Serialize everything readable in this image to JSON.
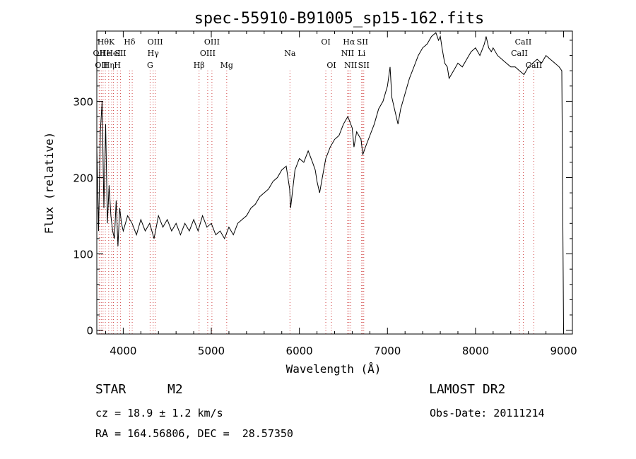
{
  "chart_data": {
    "type": "line",
    "title": "spec-55910-B91005_sp15-162.fits",
    "xlabel": "Wavelength (Å)",
    "ylabel": "Flux (relative)",
    "xlim": [
      3700,
      9100
    ],
    "ylim": [
      -5,
      392
    ],
    "x_ticks": [
      4000,
      5000,
      6000,
      7000,
      8000,
      9000
    ],
    "y_ticks": [
      0,
      100,
      200,
      300
    ],
    "grid": false,
    "line_color": "#000000",
    "marker_color": "#d04040",
    "series": [
      {
        "x": [
          3700,
          3720,
          3740,
          3760,
          3780,
          3800,
          3820,
          3840,
          3860,
          3880,
          3900,
          3920,
          3940,
          3960,
          3980,
          4000,
          4050,
          4100,
          4150,
          4200,
          4250,
          4300,
          4350,
          4400,
          4450,
          4500,
          4550,
          4600,
          4650,
          4700,
          4750,
          4800,
          4850,
          4900,
          4950,
          5000,
          5050,
          5100,
          5150,
          5200,
          5250,
          5300,
          5350,
          5400,
          5450,
          5500,
          5550,
          5600,
          5650,
          5700,
          5750,
          5800,
          5850,
          5890,
          5900,
          5950,
          6000,
          6050,
          6100,
          6150,
          6180,
          6200,
          6230,
          6260,
          6300,
          6350,
          6400,
          6450,
          6500,
          6550,
          6600,
          6620,
          6650,
          6700,
          6720,
          6750,
          6800,
          6850,
          6900,
          6950,
          7000,
          7030,
          7050,
          7080,
          7100,
          7120,
          7150,
          7200,
          7250,
          7300,
          7350,
          7400,
          7450,
          7500,
          7550,
          7580,
          7600,
          7620,
          7650,
          7680,
          7700,
          7750,
          7800,
          7850,
          7900,
          7950,
          8000,
          8050,
          8100,
          8120,
          8150,
          8180,
          8200,
          8250,
          8300,
          8350,
          8400,
          8450,
          8500,
          8550,
          8600,
          8650,
          8700,
          8750,
          8800,
          8850,
          8900,
          8950,
          8980,
          9000
        ],
        "values": [
          240,
          130,
          260,
          300,
          160,
          270,
          140,
          190,
          150,
          130,
          120,
          170,
          110,
          160,
          140,
          130,
          150,
          140,
          125,
          145,
          130,
          140,
          120,
          150,
          135,
          145,
          130,
          140,
          125,
          140,
          130,
          145,
          130,
          150,
          135,
          140,
          125,
          130,
          120,
          135,
          125,
          140,
          145,
          150,
          160,
          165,
          175,
          180,
          185,
          195,
          200,
          210,
          215,
          185,
          160,
          210,
          225,
          220,
          235,
          220,
          210,
          195,
          180,
          200,
          225,
          240,
          250,
          255,
          270,
          280,
          265,
          240,
          260,
          250,
          230,
          240,
          255,
          270,
          290,
          300,
          320,
          345,
          305,
          290,
          280,
          270,
          290,
          310,
          330,
          345,
          360,
          370,
          375,
          385,
          390,
          380,
          385,
          370,
          350,
          345,
          330,
          340,
          350,
          345,
          355,
          365,
          370,
          360,
          375,
          385,
          370,
          365,
          370,
          360,
          355,
          350,
          345,
          345,
          340,
          335,
          345,
          350,
          355,
          350,
          360,
          355,
          350,
          345,
          340,
          0
        ]
      }
    ],
    "line_markers": [
      {
        "x": 3727,
        "label": "OII",
        "row": 2
      },
      {
        "x": 3750,
        "label": "OII",
        "row": 3
      },
      {
        "x": 3771,
        "label": "Hθ",
        "row": 1
      },
      {
        "x": 3797,
        "label": "He",
        "row": 2
      },
      {
        "x": 3835,
        "label": "Hη",
        "row": 3
      },
      {
        "x": 3869,
        "label": "K",
        "row": 1
      },
      {
        "x": 3889,
        "label": "HeI",
        "row": 2
      },
      {
        "x": 3934,
        "label": "H",
        "row": 3
      },
      {
        "x": 3968,
        "label": "SII",
        "row": 2
      },
      {
        "x": 4072,
        "label": "Hδ",
        "row": 1
      },
      {
        "x": 4102,
        "label": "",
        "row": 0
      },
      {
        "x": 4305,
        "label": "G",
        "row": 3
      },
      {
        "x": 4340,
        "label": "Hγ",
        "row": 2
      },
      {
        "x": 4363,
        "label": "OIII",
        "row": 1
      },
      {
        "x": 4861,
        "label": "Hβ",
        "row": 3
      },
      {
        "x": 4959,
        "label": "OIII",
        "row": 2
      },
      {
        "x": 5007,
        "label": "OIII",
        "row": 1
      },
      {
        "x": 5175,
        "label": "Mg",
        "row": 3
      },
      {
        "x": 5893,
        "label": "Na",
        "row": 2
      },
      {
        "x": 6300,
        "label": "OI",
        "row": 1
      },
      {
        "x": 6364,
        "label": "OI",
        "row": 3
      },
      {
        "x": 6548,
        "label": "NII",
        "row": 2
      },
      {
        "x": 6563,
        "label": "Hα",
        "row": 1
      },
      {
        "x": 6583,
        "label": "NII",
        "row": 3
      },
      {
        "x": 6707,
        "label": "Li",
        "row": 2
      },
      {
        "x": 6716,
        "label": "SII",
        "row": 1
      },
      {
        "x": 6731,
        "label": "SII",
        "row": 3
      },
      {
        "x": 8498,
        "label": "CaII",
        "row": 2
      },
      {
        "x": 8542,
        "label": "CaII",
        "row": 1
      },
      {
        "x": 8662,
        "label": "CaII",
        "row": 3
      }
    ]
  },
  "info": {
    "object_class": "STAR",
    "subclass": "M2",
    "survey": "LAMOST DR2",
    "cz": "cz = 18.9 ± 1.2 km/s",
    "obs_date": "Obs-Date: 20111214",
    "coords": "RA = 164.56806, DEC =  28.57350"
  }
}
